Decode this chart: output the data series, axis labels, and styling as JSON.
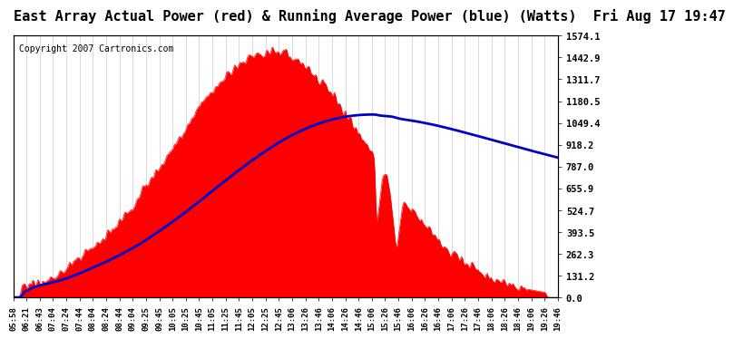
{
  "title": "East Array Actual Power (red) & Running Average Power (blue) (Watts)  Fri Aug 17 19:47",
  "copyright": "Copyright 2007 Cartronics.com",
  "ymax": 1574.1,
  "yticks": [
    0.0,
    131.2,
    262.3,
    393.5,
    524.7,
    655.9,
    787.0,
    918.2,
    1049.4,
    1180.5,
    1311.7,
    1442.9,
    1574.1
  ],
  "xtick_labels": [
    "05:58",
    "06:21",
    "06:43",
    "07:04",
    "07:24",
    "07:44",
    "08:04",
    "08:24",
    "08:44",
    "09:04",
    "09:25",
    "09:45",
    "10:05",
    "10:25",
    "10:45",
    "11:05",
    "11:25",
    "11:45",
    "12:05",
    "12:25",
    "12:45",
    "13:06",
    "13:26",
    "13:46",
    "14:06",
    "14:26",
    "14:46",
    "15:06",
    "15:26",
    "15:46",
    "16:06",
    "16:26",
    "16:46",
    "17:06",
    "17:26",
    "17:46",
    "18:06",
    "18:26",
    "18:46",
    "19:06",
    "19:26",
    "19:46"
  ],
  "bg_color": "#ffffff",
  "plot_bg_color": "#ffffff",
  "grid_color": "#cccccc",
  "actual_color": "#ff0000",
  "avg_color": "#0000cc",
  "title_fontsize": 11,
  "copyright_fontsize": 7
}
